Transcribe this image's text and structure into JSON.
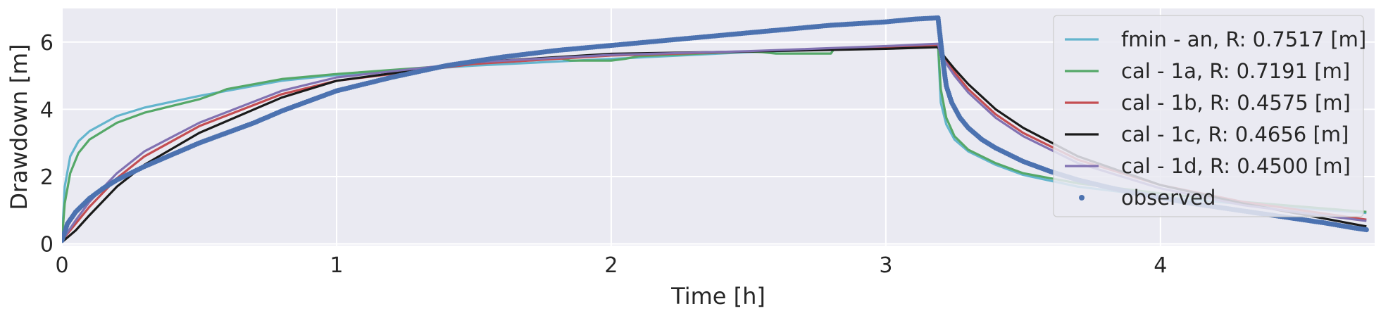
{
  "chart_data": {
    "type": "line",
    "title": "",
    "xlabel": "Time [h]",
    "ylabel": "Drawdown [m]",
    "xlim": [
      0,
      4.78
    ],
    "ylim": [
      -0.05,
      7.0
    ],
    "xticks": [
      0,
      1,
      2,
      3,
      4
    ],
    "yticks": [
      0,
      2,
      4,
      6
    ],
    "grid": true,
    "background": "#eaeaf2",
    "legend_position": "top-right",
    "series": [
      {
        "name": "fmin - an, R: 0.7517 [m]",
        "color": "#64b5cd",
        "style": "line",
        "x": [
          0,
          0.01,
          0.03,
          0.06,
          0.1,
          0.2,
          0.3,
          0.5,
          0.8,
          1.0,
          1.5,
          2.0,
          2.5,
          3.0,
          3.19,
          3.2,
          3.22,
          3.25,
          3.3,
          3.4,
          3.5,
          3.7,
          4.0,
          4.3,
          4.75
        ],
        "y": [
          0.1,
          1.7,
          2.6,
          3.05,
          3.35,
          3.8,
          4.05,
          4.4,
          4.85,
          5.02,
          5.3,
          5.5,
          5.7,
          5.85,
          5.92,
          4.2,
          3.55,
          3.1,
          2.75,
          2.35,
          2.05,
          1.7,
          1.4,
          1.18,
          0.92
        ]
      },
      {
        "name": "cal - 1a, R: 0.7191 [m]",
        "color": "#55a868",
        "style": "line",
        "x": [
          0,
          0.01,
          0.03,
          0.06,
          0.1,
          0.2,
          0.3,
          0.5,
          0.56,
          0.6,
          0.8,
          1.0,
          1.5,
          1.8,
          1.85,
          2.0,
          2.05,
          2.1,
          2.5,
          2.55,
          2.6,
          2.8,
          2.81,
          3.0,
          3.19,
          3.2,
          3.22,
          3.25,
          3.3,
          3.4,
          3.5,
          3.7,
          4.0,
          4.3,
          4.75
        ],
        "y": [
          0.1,
          1.2,
          2.1,
          2.7,
          3.1,
          3.6,
          3.9,
          4.3,
          4.47,
          4.6,
          4.9,
          5.05,
          5.35,
          5.55,
          5.45,
          5.45,
          5.5,
          5.58,
          5.72,
          5.7,
          5.66,
          5.66,
          5.78,
          5.86,
          5.93,
          4.6,
          3.75,
          3.2,
          2.8,
          2.4,
          2.1,
          1.8,
          1.5,
          1.25,
          0.95
        ]
      },
      {
        "name": "cal - 1b, R: 0.4575 [m]",
        "color": "#c44e52",
        "style": "line",
        "x": [
          0,
          0.05,
          0.1,
          0.2,
          0.3,
          0.5,
          0.8,
          1.0,
          1.5,
          2.0,
          2.5,
          3.0,
          3.19,
          3.2,
          3.25,
          3.3,
          3.4,
          3.5,
          3.7,
          4.0,
          4.3,
          4.75
        ],
        "y": [
          0.1,
          0.6,
          1.1,
          1.95,
          2.6,
          3.5,
          4.45,
          4.85,
          5.35,
          5.6,
          5.72,
          5.85,
          5.92,
          5.65,
          5.1,
          4.6,
          3.85,
          3.3,
          2.5,
          1.75,
          1.25,
          0.72
        ]
      },
      {
        "name": "cal - 1c, R: 0.4656 [m]",
        "color": "#1a1a1a",
        "style": "line",
        "x": [
          0,
          0.05,
          0.1,
          0.2,
          0.3,
          0.5,
          0.8,
          1.0,
          1.5,
          2.0,
          2.5,
          3.0,
          3.19,
          3.2,
          3.25,
          3.3,
          3.4,
          3.5,
          3.7,
          4.0,
          4.3,
          4.75
        ],
        "y": [
          0.05,
          0.4,
          0.85,
          1.7,
          2.35,
          3.3,
          4.35,
          4.85,
          5.4,
          5.65,
          5.72,
          5.8,
          5.85,
          5.7,
          5.2,
          4.75,
          4.0,
          3.45,
          2.6,
          1.75,
          1.2,
          0.52
        ]
      },
      {
        "name": "cal - 1d, R: 0.4500 [m]",
        "color": "#8172b2",
        "style": "line",
        "x": [
          0,
          0.05,
          0.1,
          0.2,
          0.3,
          0.5,
          0.8,
          1.0,
          1.5,
          2.0,
          2.5,
          3.0,
          3.19,
          3.2,
          3.25,
          3.3,
          3.4,
          3.5,
          3.7,
          4.0,
          4.3,
          4.75
        ],
        "y": [
          0.1,
          0.7,
          1.25,
          2.1,
          2.75,
          3.6,
          4.55,
          4.95,
          5.4,
          5.62,
          5.73,
          5.88,
          5.95,
          5.6,
          5.0,
          4.5,
          3.75,
          3.2,
          2.4,
          1.65,
          1.15,
          0.68
        ]
      },
      {
        "name": "observed",
        "color": "#4c72b0",
        "style": "markers",
        "x": [
          0,
          0.02,
          0.05,
          0.1,
          0.15,
          0.2,
          0.3,
          0.4,
          0.5,
          0.6,
          0.7,
          0.8,
          0.9,
          1.0,
          1.2,
          1.4,
          1.6,
          1.8,
          2.0,
          2.2,
          2.4,
          2.6,
          2.8,
          3.0,
          3.1,
          3.19,
          3.2,
          3.21,
          3.22,
          3.24,
          3.27,
          3.3,
          3.35,
          3.4,
          3.5,
          3.6,
          3.7,
          3.8,
          3.9,
          4.0,
          4.1,
          4.2,
          4.3,
          4.4,
          4.5,
          4.6,
          4.7,
          4.75
        ],
        "y": [
          0.1,
          0.6,
          0.95,
          1.35,
          1.65,
          1.9,
          2.3,
          2.65,
          3.0,
          3.3,
          3.6,
          3.95,
          4.25,
          4.55,
          4.95,
          5.3,
          5.55,
          5.75,
          5.9,
          6.05,
          6.2,
          6.35,
          6.5,
          6.6,
          6.68,
          6.72,
          6.0,
          5.3,
          4.7,
          4.2,
          3.75,
          3.45,
          3.1,
          2.85,
          2.45,
          2.15,
          1.9,
          1.7,
          1.52,
          1.38,
          1.22,
          1.1,
          0.98,
          0.86,
          0.74,
          0.62,
          0.48,
          0.42
        ]
      }
    ]
  }
}
